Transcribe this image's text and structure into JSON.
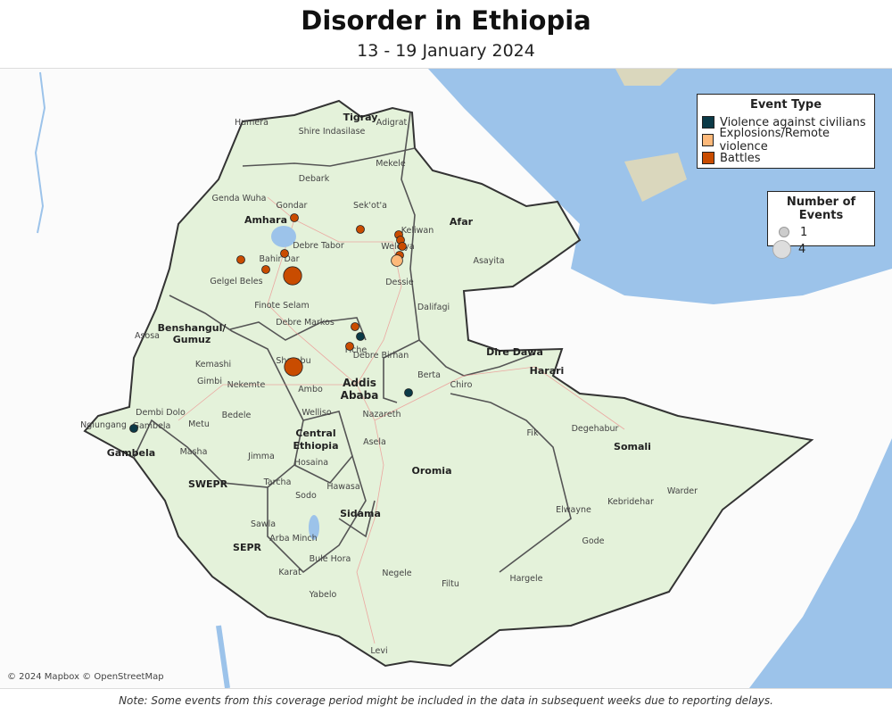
{
  "title": "Disorder in Ethiopia",
  "subtitle": "13 - 19 January 2024",
  "legend_event": {
    "title": "Event Type",
    "items": [
      {
        "label": "Violence against civilians",
        "color": "#0b3a47"
      },
      {
        "label": "Explosions/Remote violence",
        "color": "#fdb97a"
      },
      {
        "label": "Battles",
        "color": "#c94c00"
      }
    ]
  },
  "legend_size": {
    "title": "Number of Events",
    "items": [
      {
        "label": "1"
      },
      {
        "label": "4"
      }
    ]
  },
  "credit": "© 2024 Mapbox © OpenStreetMap",
  "note": "Note: Some events from this coverage period might be included in the data in subsequent weeks due to reporting delays.",
  "colors": {
    "water": "#9cc3ea",
    "land": "#e4f2da",
    "desert": "#eadcb2"
  },
  "regions": [
    "Tigray",
    "Amhara",
    "Afar",
    "Benshangul/ Gumuz",
    "Dire Dawa",
    "Harari",
    "Addis Ababa",
    "Central Ethiopia",
    "Gambela",
    "SWEPR",
    "Oromia",
    "Somali",
    "Sidama",
    "SEPR"
  ],
  "places": [
    "Humera",
    "Shire Indasilase",
    "Adigrat",
    "Mekele",
    "Debark",
    "Genda Wuha",
    "Gondar",
    "Sek'ot'a",
    "Keliwan",
    "Debre Tabor",
    "Weldiya",
    "Asayita",
    "Bahir Dar",
    "Gelgel Beles",
    "Dessie",
    "Dalifagi",
    "Finote Selam",
    "Debre Markos",
    "Asosa",
    "Fiche",
    "Debre Birhan",
    "Kemashi",
    "Shambu",
    "Berta",
    "Gimbi",
    "Nekemte",
    "Ambo",
    "Chiro",
    "Dembi Dolo",
    "Bedele",
    "Welliso",
    "Nazareth",
    "Ngiungang",
    "Gambela",
    "Metu",
    "Asela",
    "Fik",
    "Degehabur",
    "Masha",
    "Jimma",
    "Hosaina",
    "Tarcha",
    "Sodo",
    "Hawasa",
    "Warder",
    "Sawla",
    "Elwayne",
    "Kebridehar",
    "Arba Minch",
    "Bule Hora",
    "Gode",
    "Karat",
    "Negele",
    "Hargele",
    "Filtu",
    "Yabelo",
    "Levi"
  ],
  "events": [
    {
      "type": "Battles",
      "count": 1,
      "near": "Gondar"
    },
    {
      "type": "Battles",
      "count": 1,
      "near": "Sek'ot'a"
    },
    {
      "type": "Battles",
      "count": 1,
      "near": "Keliwan"
    },
    {
      "type": "Battles",
      "count": 1,
      "near": "Keliwan"
    },
    {
      "type": "Battles",
      "count": 1,
      "near": "Weldiya"
    },
    {
      "type": "Battles",
      "count": 1,
      "near": "Weldiya"
    },
    {
      "type": "Explosions/Remote violence",
      "count": 2,
      "near": "Weldiya"
    },
    {
      "type": "Battles",
      "count": 1,
      "near": "Bahir Dar"
    },
    {
      "type": "Battles",
      "count": 1,
      "near": "Gelgel Beles"
    },
    {
      "type": "Battles",
      "count": 1,
      "near": "Bahir Dar"
    },
    {
      "type": "Battles",
      "count": 4,
      "near": "Bahir Dar"
    },
    {
      "type": "Battles",
      "count": 1,
      "near": "Fiche"
    },
    {
      "type": "Violence against civilians",
      "count": 1,
      "near": "Fiche"
    },
    {
      "type": "Battles",
      "count": 1,
      "near": "Fiche"
    },
    {
      "type": "Battles",
      "count": 4,
      "near": "Shambu"
    },
    {
      "type": "Violence against civilians",
      "count": 1,
      "near": "Berta"
    },
    {
      "type": "Violence against civilians",
      "count": 1,
      "near": "Gambela"
    }
  ]
}
